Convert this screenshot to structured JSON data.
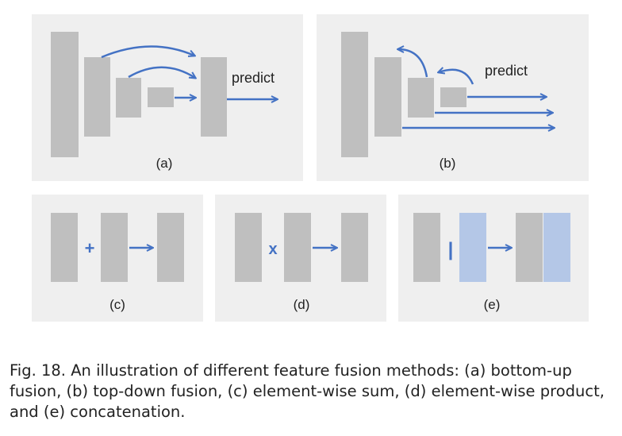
{
  "panels": {
    "a": {
      "label": "(a)",
      "predict": "predict"
    },
    "b": {
      "label": "(b)",
      "predict": "predict"
    },
    "c": {
      "label": "(c)",
      "operator": "+"
    },
    "d": {
      "label": "(d)",
      "operator": "x"
    },
    "e": {
      "label": "(e)",
      "operator": "|"
    }
  },
  "caption": "Fig. 18. An illustration of different feature fusion methods: (a) bottom-up fusion, (b) top-down fusion, (c) element-wise sum, (d) element-wise product, and (e) concatenation.",
  "colors": {
    "panel_bg": "#efefef",
    "feature_block": "#bfbfbf",
    "concat_block": "#b4c7e7",
    "arrow": "#4472c4",
    "text": "#222222"
  }
}
